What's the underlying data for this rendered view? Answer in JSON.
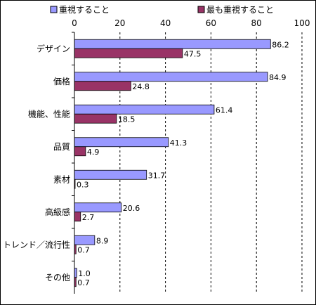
{
  "chart_data": {
    "type": "bar",
    "orientation": "horizontal",
    "title": "",
    "xlabel": "",
    "ylabel": "",
    "xlim": [
      0,
      100
    ],
    "x_ticks": [
      0,
      20,
      40,
      60,
      80,
      100
    ],
    "grid": "vertical-dashed",
    "legend_position": "top",
    "categories": [
      "デザイン",
      "価格",
      "機能、性能",
      "品質",
      "素材",
      "高級感",
      "トレンド／流行性",
      "その他"
    ],
    "series": [
      {
        "name": "重視すること",
        "color": "#9999ff",
        "values": [
          86.2,
          84.9,
          61.4,
          41.3,
          31.7,
          20.6,
          8.9,
          1.0
        ],
        "labels": [
          "86.2",
          "84.9",
          "61.4",
          "41.3",
          "31.7",
          "20.6",
          "8.9",
          "1.0"
        ]
      },
      {
        "name": "最も重視すること",
        "color": "#993366",
        "values": [
          47.5,
          24.8,
          18.5,
          4.9,
          0.3,
          2.7,
          0.7,
          0.7
        ],
        "labels": [
          "47.5",
          "24.8",
          "18.5",
          "4.9",
          "0.3",
          "2.7",
          "0.7",
          "0.7"
        ]
      }
    ]
  }
}
